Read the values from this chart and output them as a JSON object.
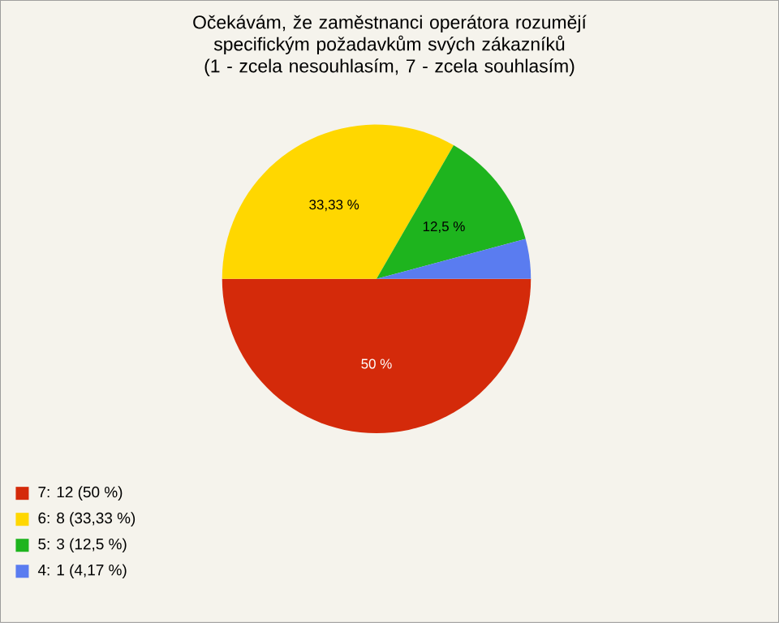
{
  "chart_data": {
    "type": "pie",
    "title": "Očekávám, že zaměstnanci operátora rozumějí specifickým požadavkům svých zákazníků (1 - zcela nesouhlasím, 7 - zcela souhlasím)",
    "categories": [
      "7: 12 (50 %)",
      "6: 8 (33,33 %)",
      "5: 3 (12,5 %)",
      "4: 1 (4,17 %)"
    ],
    "values": [
      50,
      33.33,
      12.5,
      4.17
    ],
    "colors": [
      "#d42a0a",
      "#ffd700",
      "#1eb41e",
      "#5a7cf0"
    ],
    "value_labels": [
      "50 %",
      "33,33 %",
      "12,5 %",
      null
    ],
    "legend": "bottom left"
  }
}
